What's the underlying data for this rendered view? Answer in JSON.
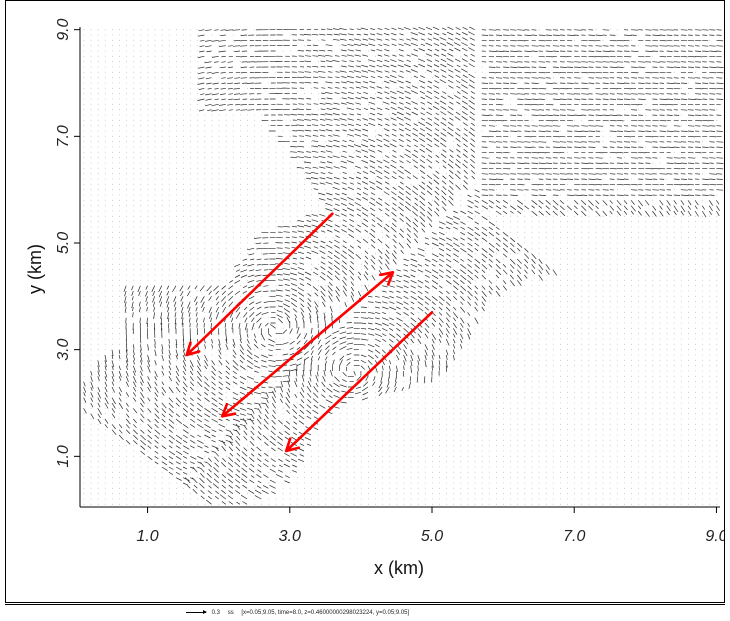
{
  "chart_data": {
    "type": "scatter",
    "title": "",
    "xlabel": "x (km)",
    "ylabel": "y (km)",
    "xlim": [
      0.05,
      9.05
    ],
    "ylim": [
      0.05,
      9.05
    ],
    "x_ticks": [
      "1.0",
      "3.0",
      "5.0",
      "7.0",
      "9.0"
    ],
    "y_ticks": [
      "1.0",
      "3.0",
      "5.0",
      "7.0",
      "9.0"
    ],
    "x_tick_values": [
      1.0,
      3.0,
      5.0,
      7.0,
      9.0
    ],
    "y_tick_values": [
      1.0,
      3.0,
      5.0,
      7.0,
      9.0
    ],
    "grid": false,
    "description_kind": "velocity vector field",
    "annotations": [
      {
        "type": "arrow",
        "color": "#ff0000",
        "from": [
          3.6,
          5.55
        ],
        "to": [
          1.55,
          2.9
        ],
        "heads": "end"
      },
      {
        "type": "arrow",
        "color": "#ff0000",
        "from": [
          2.05,
          1.75
        ],
        "to": [
          4.45,
          4.45
        ],
        "heads": "both"
      },
      {
        "type": "arrow",
        "color": "#ff0000",
        "from": [
          5.0,
          3.7
        ],
        "to": [
          2.95,
          1.1
        ],
        "heads": "end"
      }
    ]
  },
  "footer": {
    "scale_value": "0.3",
    "scale_unit": "ss",
    "meta": "[x=0.05;9.05, time=8.0, z=0.46000000298023224, y=0.05;9.05]"
  }
}
